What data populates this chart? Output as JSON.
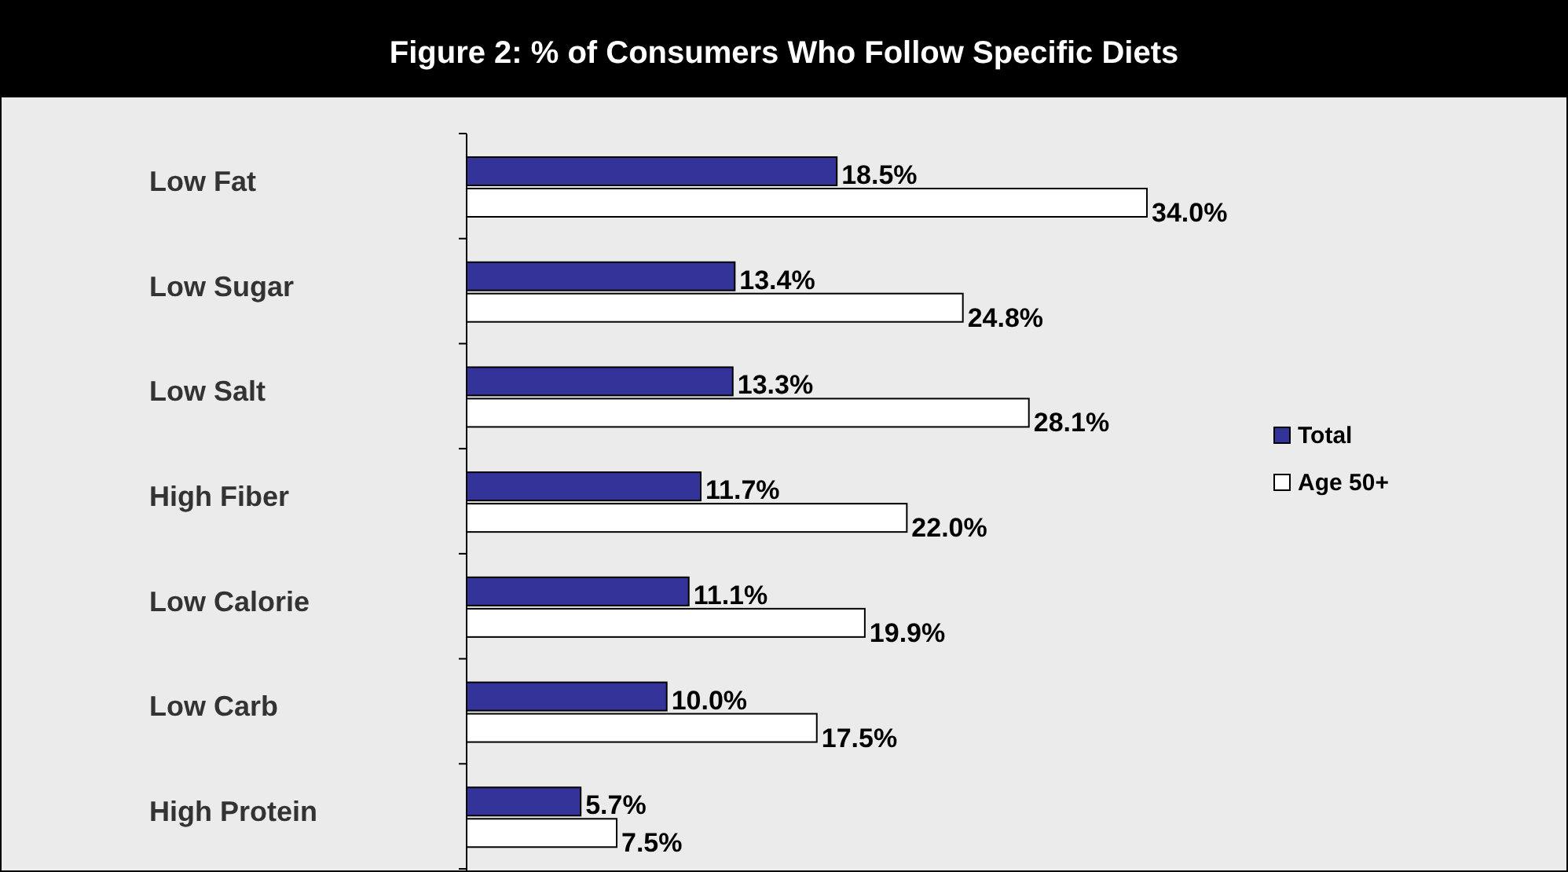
{
  "chart_data": {
    "type": "bar",
    "orientation": "horizontal",
    "title": "Figure 2: % of Consumers Who Follow Specific Diets",
    "categories": [
      "Low Fat",
      "Low Sugar",
      "Low Salt",
      "High Fiber",
      "Low Calorie",
      "Low Carb",
      "High Protein"
    ],
    "series": [
      {
        "name": "Total",
        "color": "#333399",
        "values": [
          18.5,
          13.4,
          13.3,
          11.7,
          11.1,
          10.0,
          5.7
        ],
        "value_labels": [
          "18.5%",
          "13.4%",
          "13.3%",
          "11.7%",
          "11.1%",
          "10.0%",
          "5.7%"
        ]
      },
      {
        "name": "Age 50+",
        "color": "#ffffff",
        "values": [
          34.0,
          24.8,
          28.1,
          22.0,
          19.9,
          17.5,
          7.5
        ],
        "value_labels": [
          "34.0%",
          "24.8%",
          "28.1%",
          "22.0%",
          "19.9%",
          "17.5%",
          "7.5%"
        ]
      }
    ],
    "legend": "right"
  }
}
